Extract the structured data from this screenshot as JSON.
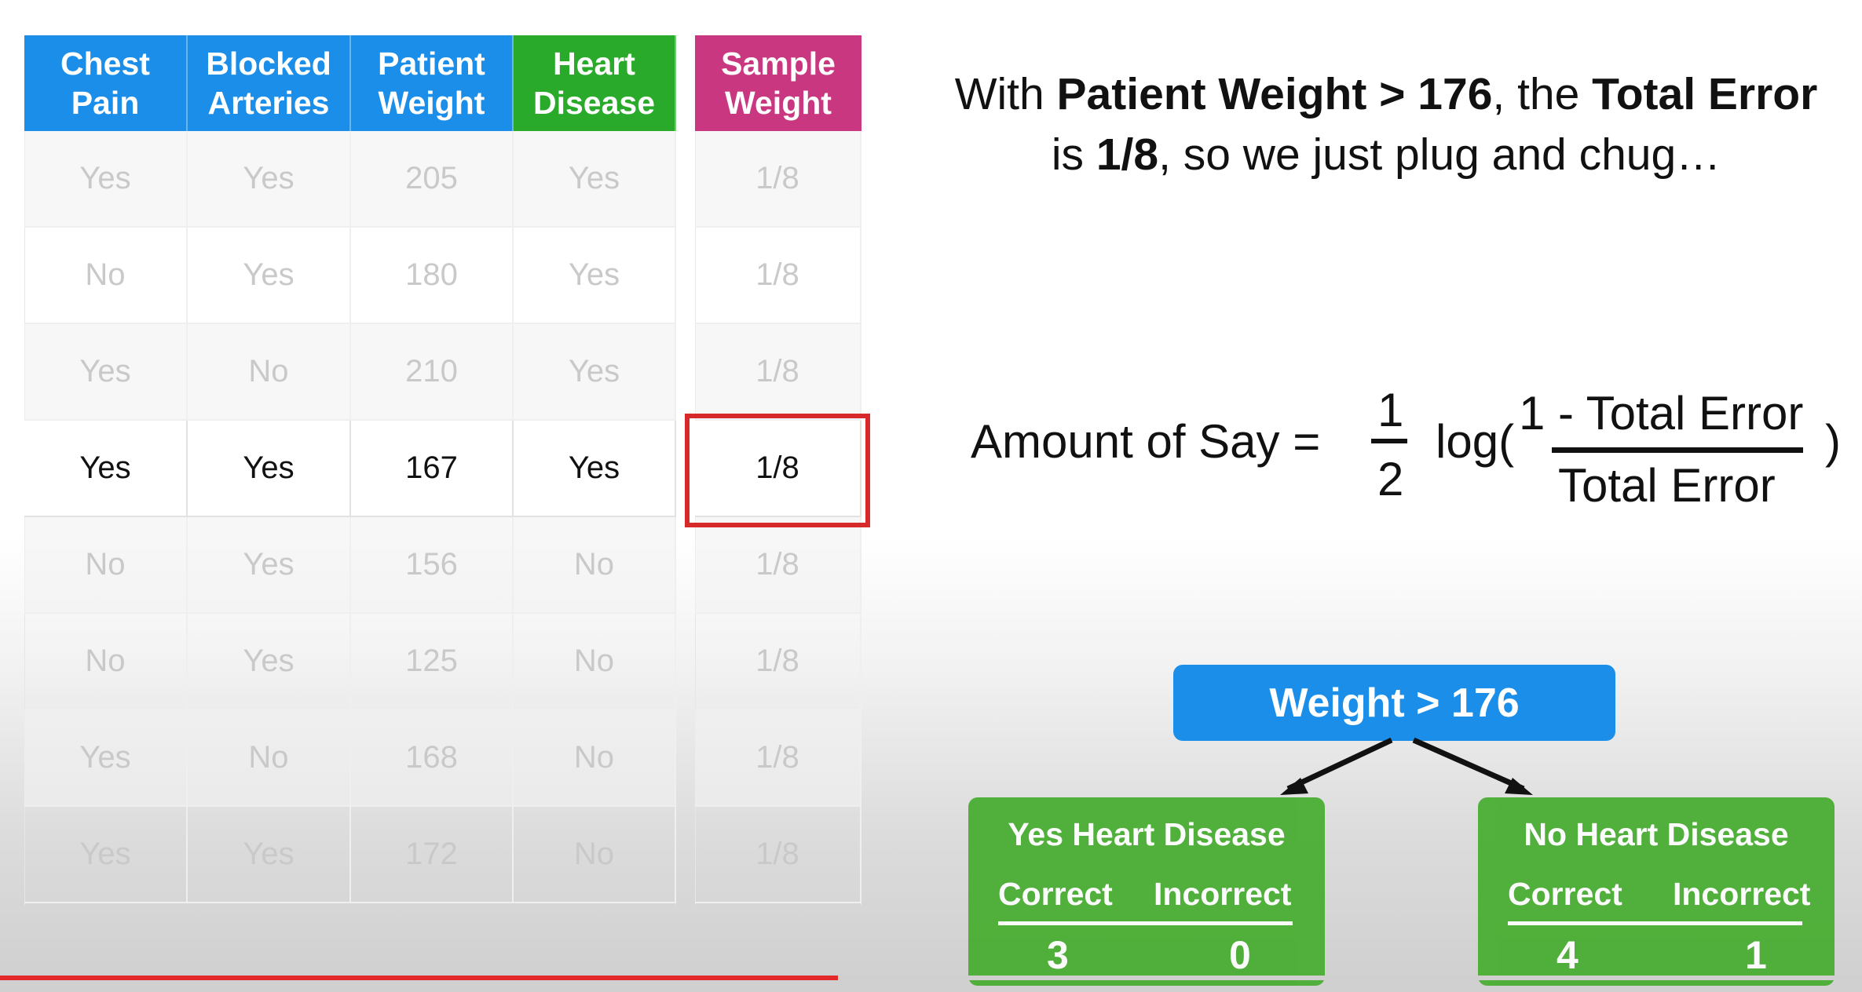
{
  "table": {
    "columns": [
      {
        "label": "Chest\nPain",
        "color": "#1a8ee8"
      },
      {
        "label": "Blocked\nArteries",
        "color": "#1a8ee8"
      },
      {
        "label": "Patient\nWeight",
        "color": "#1a8ee8"
      },
      {
        "label": "Heart\nDisease",
        "color": "#2aaa2a"
      }
    ],
    "sample_weight_header": "Sample\nWeight",
    "sample_weight_color": "#c8377f",
    "rows": [
      {
        "chest_pain": "Yes",
        "blocked_arteries": "Yes",
        "patient_weight": "205",
        "heart_disease": "Yes",
        "sample_weight": "1/8",
        "highlighted": false
      },
      {
        "chest_pain": "No",
        "blocked_arteries": "Yes",
        "patient_weight": "180",
        "heart_disease": "Yes",
        "sample_weight": "1/8",
        "highlighted": false
      },
      {
        "chest_pain": "Yes",
        "blocked_arteries": "No",
        "patient_weight": "210",
        "heart_disease": "Yes",
        "sample_weight": "1/8",
        "highlighted": false
      },
      {
        "chest_pain": "Yes",
        "blocked_arteries": "Yes",
        "patient_weight": "167",
        "heart_disease": "Yes",
        "sample_weight": "1/8",
        "highlighted": true
      },
      {
        "chest_pain": "No",
        "blocked_arteries": "Yes",
        "patient_weight": "156",
        "heart_disease": "No",
        "sample_weight": "1/8",
        "highlighted": false
      },
      {
        "chest_pain": "No",
        "blocked_arteries": "Yes",
        "patient_weight": "125",
        "heart_disease": "No",
        "sample_weight": "1/8",
        "highlighted": false
      },
      {
        "chest_pain": "Yes",
        "blocked_arteries": "No",
        "patient_weight": "168",
        "heart_disease": "No",
        "sample_weight": "1/8",
        "highlighted": false
      },
      {
        "chest_pain": "Yes",
        "blocked_arteries": "Yes",
        "patient_weight": "172",
        "heart_disease": "No",
        "sample_weight": "1/8",
        "highlighted": false
      }
    ],
    "highlight_color": "#d62a2a"
  },
  "headline": {
    "p1": "With ",
    "b1": "Patient Weight > 176",
    "p2": ", the ",
    "b2": "Total Error",
    "p3": " is ",
    "b3": "1/8",
    "p4": ", so we just plug and chug…"
  },
  "formula": {
    "lhs": "Amount of Say =",
    "half_num": "1",
    "half_den": "2",
    "log": "log(",
    "frac_num": "1 - Total Error",
    "frac_den": "Total Error",
    "close": ")"
  },
  "stump": {
    "root_label": "Weight > 176",
    "root_color": "#1a8ee8",
    "leaf_color": "#45ad2e",
    "leaves": [
      {
        "title": "Yes Heart Disease",
        "correct_label": "Correct",
        "incorrect_label": "Incorrect",
        "correct": "3",
        "incorrect": "0"
      },
      {
        "title": "No Heart Disease",
        "correct_label": "Correct",
        "incorrect_label": "Incorrect",
        "correct": "4",
        "incorrect": "1"
      }
    ]
  },
  "progress": {
    "played_fraction": 0.45,
    "played_color": "#e32a2a",
    "buffered_color": "#cfcfcf"
  }
}
